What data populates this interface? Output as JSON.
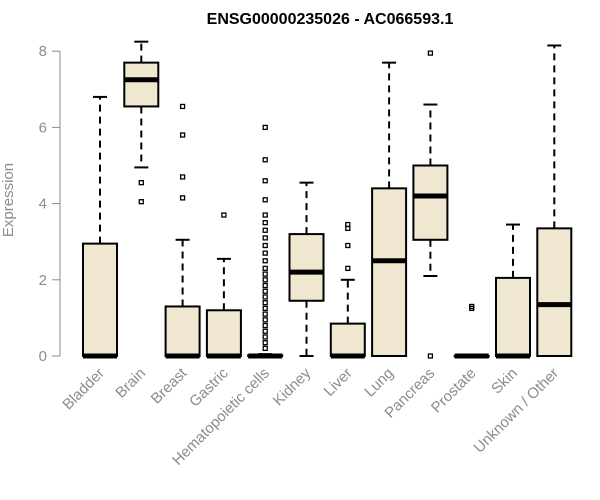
{
  "chart_data": {
    "type": "box",
    "title": "ENSG00000235026 - AC066593.1",
    "xlabel": "",
    "ylabel": "Expression",
    "ylim": [
      0,
      8.3
    ],
    "yticks": [
      0,
      2,
      4,
      6,
      8
    ],
    "grid": false,
    "colors": {
      "box_fill": "#efe7cf",
      "stroke": "#000000",
      "axis_text": "#8c8c8c"
    },
    "categories": [
      "Bladder",
      "Brain",
      "Breast",
      "Gastric",
      "Hematopoietic cells",
      "Kidney",
      "Liver",
      "Lung",
      "Pancreas",
      "Prostate",
      "Skin",
      "Unknown / Other"
    ],
    "boxes": [
      {
        "name": "Bladder",
        "whisker_low": 0,
        "q1": 0,
        "median": 0,
        "q3": 2.95,
        "whisker_high": 6.8,
        "outliers": []
      },
      {
        "name": "Brain",
        "whisker_low": 4.95,
        "q1": 6.55,
        "median": 7.25,
        "q3": 7.7,
        "whisker_high": 8.25,
        "outliers": [
          4.55,
          4.05
        ]
      },
      {
        "name": "Breast",
        "whisker_low": 0,
        "q1": 0,
        "median": 0,
        "q3": 1.3,
        "whisker_high": 3.05,
        "outliers": [
          4.15,
          4.7,
          5.8,
          6.55
        ]
      },
      {
        "name": "Gastric",
        "whisker_low": 0,
        "q1": 0,
        "median": 0,
        "q3": 1.2,
        "whisker_high": 2.55,
        "outliers": [
          3.7
        ]
      },
      {
        "name": "Hematopoietic cells",
        "whisker_low": 0,
        "q1": 0,
        "median": 0,
        "q3": 0.02,
        "whisker_high": 0.05,
        "outliers": [
          0.2,
          0.35,
          0.5,
          0.65,
          0.8,
          0.95,
          1.1,
          1.25,
          1.4,
          1.55,
          1.7,
          1.85,
          2.0,
          2.15,
          2.3,
          2.5,
          2.7,
          2.9,
          3.1,
          3.3,
          3.5,
          3.7,
          4.1,
          4.6,
          5.15,
          6.0
        ]
      },
      {
        "name": "Kidney",
        "whisker_low": 0,
        "q1": 1.45,
        "median": 2.2,
        "q3": 3.2,
        "whisker_high": 4.55,
        "outliers": []
      },
      {
        "name": "Liver",
        "whisker_low": 0,
        "q1": 0,
        "median": 0,
        "q3": 0.85,
        "whisker_high": 2.0,
        "outliers": [
          2.3,
          2.9,
          3.35,
          3.45
        ]
      },
      {
        "name": "Lung",
        "whisker_low": 0,
        "q1": 0,
        "median": 2.5,
        "q3": 4.4,
        "whisker_high": 7.7,
        "outliers": []
      },
      {
        "name": "Pancreas",
        "whisker_low": 2.1,
        "q1": 3.05,
        "median": 4.2,
        "q3": 5.0,
        "whisker_high": 6.6,
        "outliers": [
          7.95,
          0
        ]
      },
      {
        "name": "Prostate",
        "whisker_low": 0,
        "q1": 0,
        "median": 0,
        "q3": 0,
        "whisker_high": 0,
        "outliers": [
          1.25,
          1.3
        ]
      },
      {
        "name": "Skin",
        "whisker_low": 0,
        "q1": 0,
        "median": 0,
        "q3": 2.05,
        "whisker_high": 3.45,
        "outliers": []
      },
      {
        "name": "Unknown / Other",
        "whisker_low": 0,
        "q1": 0,
        "median": 1.35,
        "q3": 3.35,
        "whisker_high": 8.15,
        "outliers": []
      }
    ]
  }
}
